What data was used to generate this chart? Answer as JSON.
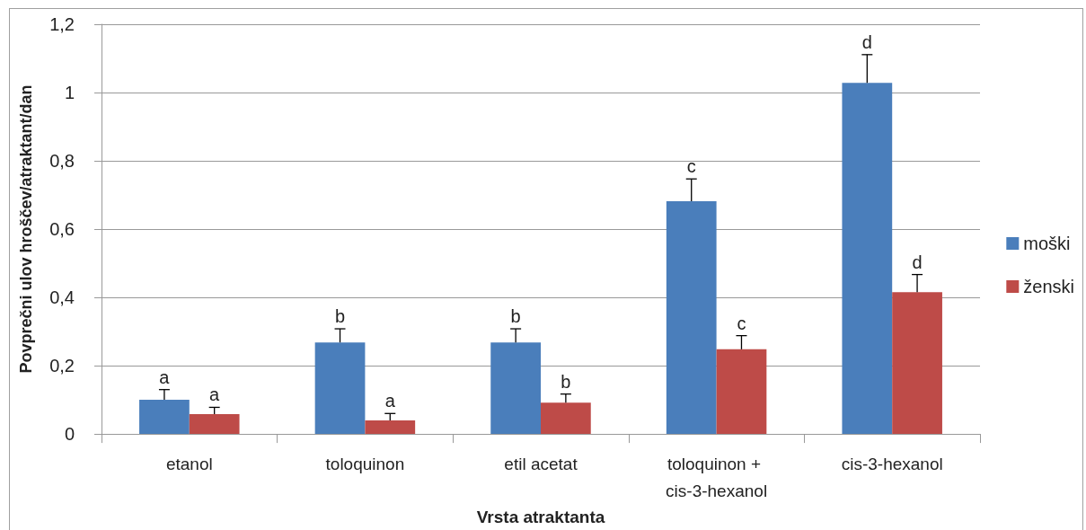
{
  "chart_data": {
    "type": "bar",
    "xlabel": "Vrsta atraktanta",
    "ylabel": "Povprečni ulov hroščev/atraktant/dan",
    "categories": [
      "etanol",
      "toloquinon",
      "etil acetat",
      "toloquinon + cis-3-hexanol",
      "cis-3-hexanol"
    ],
    "series": [
      {
        "name": "moški",
        "color": "#4a7ebb",
        "values": [
          0.1,
          0.268,
          0.268,
          0.682,
          1.028
        ],
        "errors": [
          0.03,
          0.04,
          0.04,
          0.065,
          0.083
        ]
      },
      {
        "name": "ženski",
        "color": "#be4b48",
        "values": [
          0.058,
          0.04,
          0.092,
          0.248,
          0.415
        ],
        "errors": [
          0.02,
          0.02,
          0.025,
          0.04,
          0.052
        ]
      }
    ],
    "ylim": [
      0,
      1.2
    ],
    "yticks": [
      0,
      {
        "value": 0.2,
        "label": "0,2"
      },
      {
        "value": 0.4,
        "label": "0,4"
      },
      {
        "value": 0.6,
        "label": "0,6"
      },
      {
        "value": 0.8,
        "label": "0,8"
      },
      1,
      {
        "value": 1.2,
        "label": "1,2"
      }
    ],
    "grid": "y",
    "legend": "right",
    "annotations": [
      {
        "text": "a",
        "x": "etanol",
        "y": 0.1
      },
      {
        "text": "a",
        "x": "etanol",
        "y": 0.058
      },
      {
        "text": "b",
        "x": "toloquinon",
        "y": 0.268
      },
      {
        "text": "a",
        "x": "toloquinon",
        "y": 0.04
      },
      {
        "text": "b",
        "x": "etil acetat",
        "y": 0.268
      },
      {
        "text": "b",
        "x": "etil acetat",
        "y": 0.092
      },
      {
        "text": "c",
        "x": "toloquinon + cis-3-hexanol",
        "y": 0.682
      },
      {
        "text": "c",
        "x": "toloquinon + cis-3-hexanol",
        "y": 0.248
      },
      {
        "text": "d",
        "x": "cis-3-hexanol",
        "y": 1.028
      },
      {
        "text": "d",
        "x": "cis-3-hexanol",
        "y": 0.415
      }
    ]
  }
}
